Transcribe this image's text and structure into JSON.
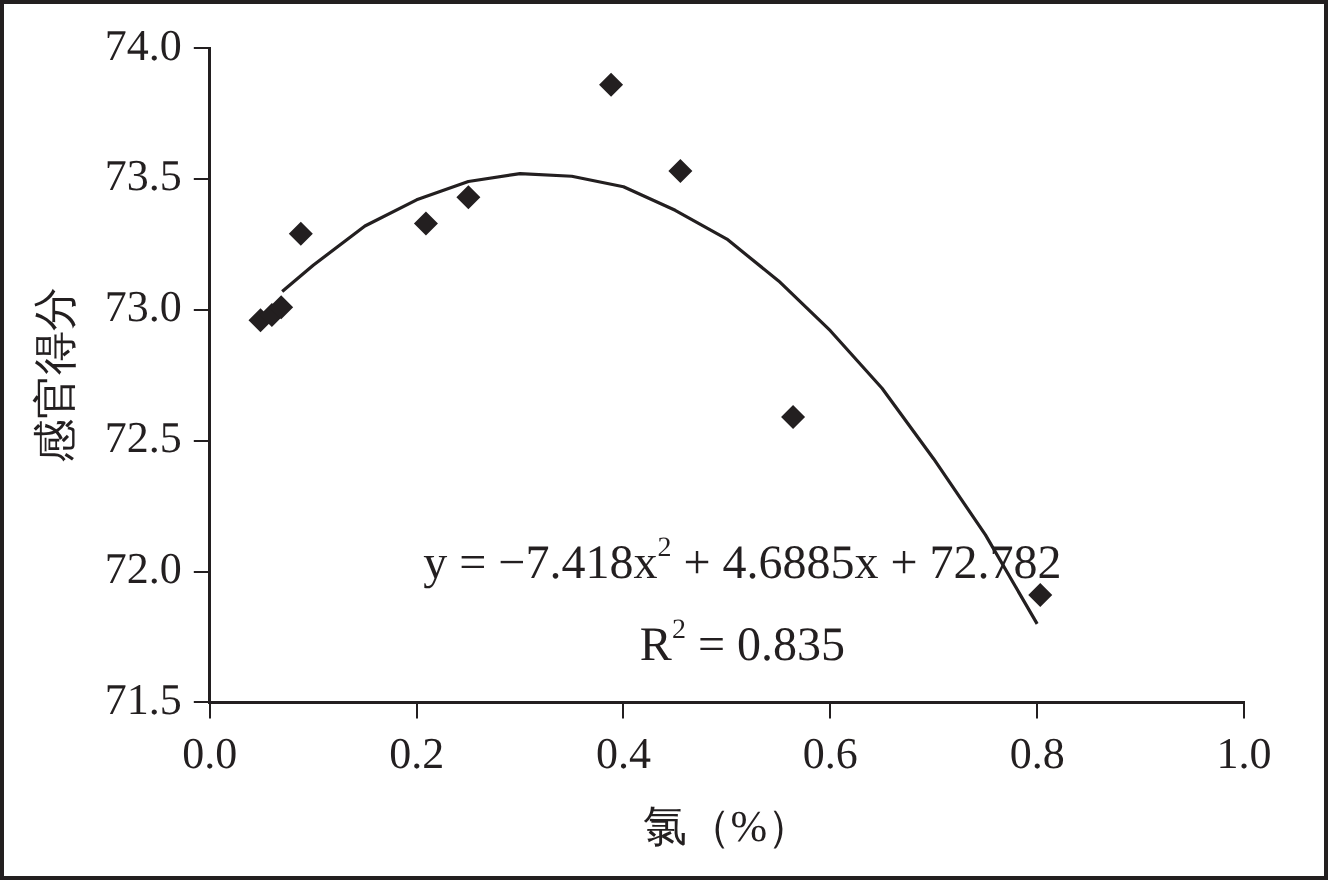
{
  "chart_data": {
    "type": "scatter",
    "xlabel": "氯（%）",
    "ylabel": "感官得分",
    "xlim": [
      0,
      1
    ],
    "xticks": [
      {
        "value": 0,
        "label": "0.0"
      },
      0.2,
      0.4,
      0.6,
      0.8,
      {
        "value": 1,
        "label": "1.0"
      }
    ],
    "ylim": [
      71.5,
      74
    ],
    "yticks": [
      71.5,
      {
        "value": 72,
        "label": "72.0"
      },
      72.5,
      {
        "value": 73,
        "label": "73.0"
      },
      73.5,
      {
        "value": 74,
        "label": "74.0"
      }
    ],
    "grid": false,
    "legend": false,
    "marker": "diamond",
    "series": [
      {
        "type": "scatter",
        "color": "#231f20",
        "x": [
          0.049,
          0.06,
          0.069,
          0.088,
          0.209,
          0.25,
          0.388,
          0.455,
          0.564,
          0.803
        ],
        "values": [
          72.96,
          72.98,
          73.01,
          73.29,
          73.33,
          73.43,
          73.86,
          73.53,
          72.59,
          71.91
        ]
      },
      {
        "type": "line",
        "color": "#231f20",
        "marker": "none",
        "line_style": "solid",
        "x": [
          0.07,
          0.1,
          0.15,
          0.2,
          0.25,
          0.3,
          0.35,
          0.4,
          0.45,
          0.5,
          0.55,
          0.6,
          0.65,
          0.7,
          0.75,
          0.8
        ],
        "values": [
          73.07,
          73.17,
          73.32,
          73.42,
          73.49,
          73.52,
          73.51,
          73.47,
          73.38,
          73.27,
          73.11,
          72.92,
          72.7,
          72.43,
          72.14,
          71.8
        ]
      }
    ],
    "annotations": [
      "y = −7.418x$^{2}$ + 4.6885x + 72.782",
      "R$^{2}$ = 0.835"
    ]
  }
}
